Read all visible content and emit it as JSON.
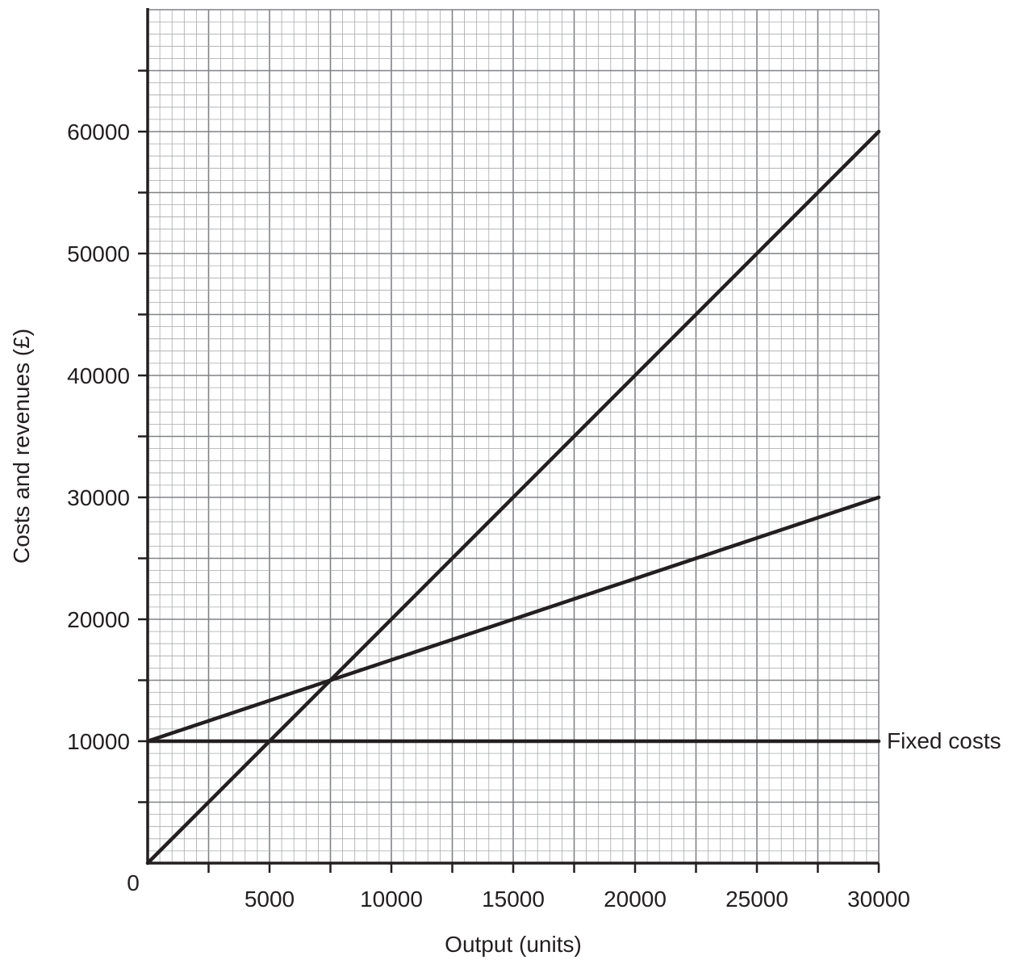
{
  "chart_data": {
    "type": "line",
    "xlabel": "Output (units)",
    "ylabel": "Costs and revenues (£)",
    "xlim": [
      0,
      30000
    ],
    "ylim": [
      0,
      70000
    ],
    "x_ticks": [
      0,
      5000,
      10000,
      15000,
      20000,
      25000,
      30000
    ],
    "x_tick_labels": [
      "0",
      "5000",
      "10000",
      "15000",
      "20000",
      "25000",
      "30000"
    ],
    "y_ticks": [
      10000,
      20000,
      30000,
      40000,
      50000,
      60000
    ],
    "y_tick_labels": [
      "10000",
      "20000",
      "30000",
      "40000",
      "50000",
      "60000"
    ],
    "origin_label": "0",
    "grid": true,
    "series": [
      {
        "x": [
          0,
          30000
        ],
        "y": [
          0,
          60000
        ]
      },
      {
        "x": [
          0,
          30000
        ],
        "y": [
          10000,
          30000
        ]
      },
      {
        "name": "Fixed costs",
        "x": [
          0,
          30000
        ],
        "y": [
          10000,
          10000
        ]
      }
    ],
    "annotations": [
      {
        "text": "Fixed costs",
        "x": 30000,
        "y": 10000
      }
    ],
    "colors": {
      "line": "#231f20",
      "grid_minor": "#a7a9ac",
      "grid_major": "#808285"
    }
  }
}
